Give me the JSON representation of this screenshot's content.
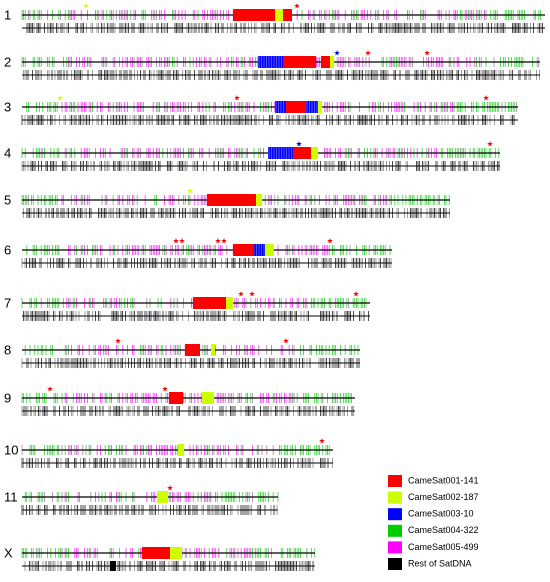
{
  "chromosomes": [
    {
      "label": "1"
    },
    {
      "label": "2"
    },
    {
      "label": "3"
    },
    {
      "label": "4"
    },
    {
      "label": "5"
    },
    {
      "label": "6"
    },
    {
      "label": "7"
    },
    {
      "label": "8"
    },
    {
      "label": "9"
    },
    {
      "label": "10"
    },
    {
      "label": "11"
    },
    {
      "label": "X"
    }
  ],
  "legend": [
    {
      "name": "CameSat001-141",
      "color": "#ff0000"
    },
    {
      "name": "CameSat002-187",
      "color": "#ccff00"
    },
    {
      "name": "CameSat003-10",
      "color": "#0000ff"
    },
    {
      "name": "CameSat004-322",
      "color": "#00cc00"
    },
    {
      "name": "CameSat005-499",
      "color": "#ff00ff"
    },
    {
      "name": "Rest of SatDNA",
      "color": "#000000"
    }
  ]
}
